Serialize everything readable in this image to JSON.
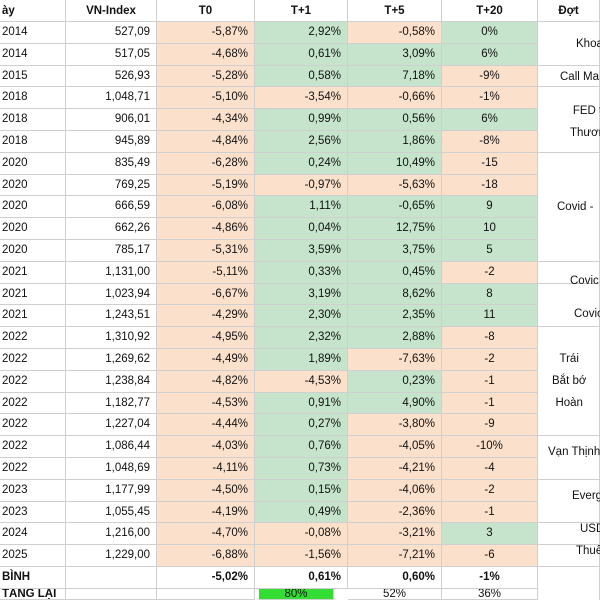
{
  "colors": {
    "green": "#c6e3cc",
    "peach": "#fbe0cc",
    "bright_green": "#33dd33",
    "border": "#cfcfcf"
  },
  "headers": [
    "ày",
    "VN-Index",
    "T0",
    "T+1",
    "T+5",
    "T+20",
    "Đợt"
  ],
  "rows": [
    {
      "date": "2014",
      "index": "527,09",
      "t0": "-5,87%",
      "t1": "2,92%",
      "t5": "-0,58%",
      "t20": "0%"
    },
    {
      "date": "2014",
      "index": "517,05",
      "t0": "-4,68%",
      "t1": "0,61%",
      "t5": "3,09%",
      "t20": "6%"
    },
    {
      "date": "2015",
      "index": "526,93",
      "t0": "-5,28%",
      "t1": "0,58%",
      "t5": "7,18%",
      "t20": "-9%"
    },
    {
      "date": "2018",
      "index": "1,048,71",
      "t0": "-5,10%",
      "t1": "-3,54%",
      "t5": "-0,66%",
      "t20": "-1%"
    },
    {
      "date": "2018",
      "index": "906,01",
      "t0": "-4,34%",
      "t1": "0,99%",
      "t5": "0,56%",
      "t20": "6%"
    },
    {
      "date": "2018",
      "index": "945,89",
      "t0": "-4,84%",
      "t1": "2,56%",
      "t5": "1,86%",
      "t20": "-8%"
    },
    {
      "date": "2020",
      "index": "835,49",
      "t0": "-6,28%",
      "t1": "0,24%",
      "t5": "10,49%",
      "t20": "-15"
    },
    {
      "date": "2020",
      "index": "769,25",
      "t0": "-5,19%",
      "t1": "-0,97%",
      "t5": "-5,63%",
      "t20": "-18"
    },
    {
      "date": "2020",
      "index": "666,59",
      "t0": "-6,08%",
      "t1": "1,11%",
      "t5": "-0,65%",
      "t20": "9"
    },
    {
      "date": "2020",
      "index": "662,26",
      "t0": "-4,86%",
      "t1": "0,04%",
      "t5": "12,75%",
      "t20": "10"
    },
    {
      "date": "2020",
      "index": "785,17",
      "t0": "-5,31%",
      "t1": "3,59%",
      "t5": "3,75%",
      "t20": "5"
    },
    {
      "date": "2021",
      "index": "1,131,00",
      "t0": "-5,11%",
      "t1": "0,33%",
      "t5": "0,45%",
      "t20": "-2"
    },
    {
      "date": "2021",
      "index": "1,023,94",
      "t0": "-6,67%",
      "t1": "3,19%",
      "t5": "8,62%",
      "t20": "8"
    },
    {
      "date": "2021",
      "index": "1,243,51",
      "t0": "-4,29%",
      "t1": "2,30%",
      "t5": "2,35%",
      "t20": "11"
    },
    {
      "date": "2022",
      "index": "1,310,92",
      "t0": "-4,95%",
      "t1": "2,32%",
      "t5": "2,88%",
      "t20": "-8"
    },
    {
      "date": "2022",
      "index": "1,269,62",
      "t0": "-4,49%",
      "t1": "1,89%",
      "t5": "-7,63%",
      "t20": "-2"
    },
    {
      "date": "2022",
      "index": "1,238,84",
      "t0": "-4,82%",
      "t1": "-4,53%",
      "t5": "0,23%",
      "t20": "-1"
    },
    {
      "date": "2022",
      "index": "1,182,77",
      "t0": "-4,53%",
      "t1": "0,91%",
      "t5": "4,90%",
      "t20": "-1"
    },
    {
      "date": "2022",
      "index": "1,227,04",
      "t0": "-4,44%",
      "t1": "0,27%",
      "t5": "-3,80%",
      "t20": "-9"
    },
    {
      "date": "2022",
      "index": "1,086,44",
      "t0": "-4,03%",
      "t1": "0,76%",
      "t5": "-4,05%",
      "t20": "-10%"
    },
    {
      "date": "2022",
      "index": "1,048,69",
      "t0": "-4,11%",
      "t1": "0,73%",
      "t5": "-4,21%",
      "t20": "-4"
    },
    {
      "date": "2023",
      "index": "1,177,99",
      "t0": "-4,50%",
      "t1": "0,15%",
      "t5": "-4,06%",
      "t20": "-2"
    },
    {
      "date": "2023",
      "index": "1,055,45",
      "t0": "-4,19%",
      "t1": "0,49%",
      "t5": "-2,36%",
      "t20": "-1"
    },
    {
      "date": "2024",
      "index": "1,216,00",
      "t0": "-4,70%",
      "t1": "-0,08%",
      "t5": "-3,21%",
      "t20": "3"
    },
    {
      "date": "2025",
      "index": "1,229,00",
      "t0": "-6,88%",
      "t1": "-1,56%",
      "t5": "-7,21%",
      "t20": "-6"
    }
  ],
  "summary_rows": [
    {
      "label": "BÌNH",
      "t0": "-5,02%",
      "t1": "0,61%",
      "t5": "0,60%",
      "t20": "-1%"
    },
    {
      "label": "TĂNG LẠI",
      "t1": "80%",
      "t5": "52%",
      "t20": "36%"
    }
  ],
  "events": [
    {
      "text": "Khoa"
    },
    {
      "text": "Call Ma"
    },
    {
      "text": "FED t\nThươn"
    },
    {
      "text": "Covid -"
    },
    {
      "text": "Covic"
    },
    {
      "text": "Covic"
    },
    {
      "text": "Trái\nBắt bớ\nHoàn"
    },
    {
      "text": "Vạn Thịnh"
    },
    {
      "text": "Everg"
    },
    {
      "text": "USD"
    },
    {
      "text": "Thuế"
    }
  ]
}
